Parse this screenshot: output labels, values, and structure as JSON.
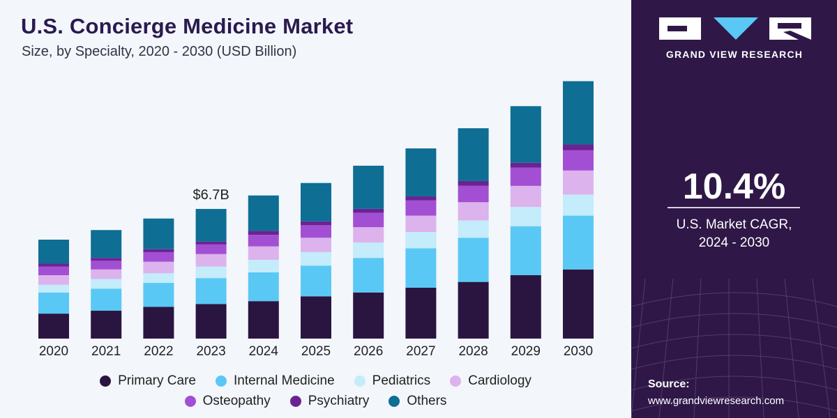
{
  "header": {
    "title": "U.S. Concierge Medicine Market",
    "subtitle": "Size, by Specialty, 2020 - 2030 (USD Billion)"
  },
  "sidebar": {
    "brand": "GRAND VIEW RESEARCH",
    "cagr_value": "10.4%",
    "cagr_label_line1": "U.S. Market CAGR,",
    "cagr_label_line2": "2024 - 2030",
    "source_label": "Source:",
    "source_url": "www.grandviewresearch.com"
  },
  "colors": {
    "Primary Care": "#2a1540",
    "Internal Medicine": "#5ac8f5",
    "Pediatrics": "#c4ecfb",
    "Cardiology": "#dcb3ec",
    "Osteopathy": "#a34fd3",
    "Psychiatry": "#6b2293",
    "Others": "#0e6e93"
  },
  "chart_data": {
    "type": "bar",
    "stacked": true,
    "title": "U.S. Concierge Medicine Market",
    "subtitle": "Size, by Specialty, 2020 - 2030 (USD Billion)",
    "categories": [
      "2020",
      "2021",
      "2022",
      "2023",
      "2024",
      "2025",
      "2026",
      "2027",
      "2028",
      "2029",
      "2030"
    ],
    "series": [
      {
        "name": "Primary Care",
        "values": [
          1.3,
          1.45,
          1.65,
          1.8,
          1.95,
          2.2,
          2.4,
          2.65,
          2.95,
          3.3,
          3.6
        ]
      },
      {
        "name": "Internal Medicine",
        "values": [
          1.1,
          1.15,
          1.25,
          1.35,
          1.5,
          1.6,
          1.8,
          2.05,
          2.3,
          2.55,
          2.8
        ]
      },
      {
        "name": "Pediatrics",
        "values": [
          0.4,
          0.5,
          0.5,
          0.6,
          0.65,
          0.7,
          0.8,
          0.85,
          0.9,
          1.0,
          1.1
        ]
      },
      {
        "name": "Cardiology",
        "values": [
          0.5,
          0.5,
          0.6,
          0.65,
          0.7,
          0.75,
          0.8,
          0.85,
          0.95,
          1.1,
          1.25
        ]
      },
      {
        "name": "Osteopathy",
        "values": [
          0.45,
          0.45,
          0.5,
          0.5,
          0.6,
          0.65,
          0.75,
          0.8,
          0.85,
          0.95,
          1.05
        ]
      },
      {
        "name": "Psychiatry",
        "values": [
          0.15,
          0.15,
          0.15,
          0.15,
          0.2,
          0.2,
          0.2,
          0.2,
          0.25,
          0.25,
          0.3
        ]
      },
      {
        "name": "Others",
        "values": [
          1.25,
          1.45,
          1.6,
          1.7,
          1.85,
          2.0,
          2.25,
          2.5,
          2.75,
          2.95,
          3.3
        ]
      }
    ],
    "annotations": [
      {
        "category": "2023",
        "text": "$6.7B"
      }
    ],
    "ylim": [
      0,
      14
    ],
    "legend": "bottom",
    "grid": false
  }
}
